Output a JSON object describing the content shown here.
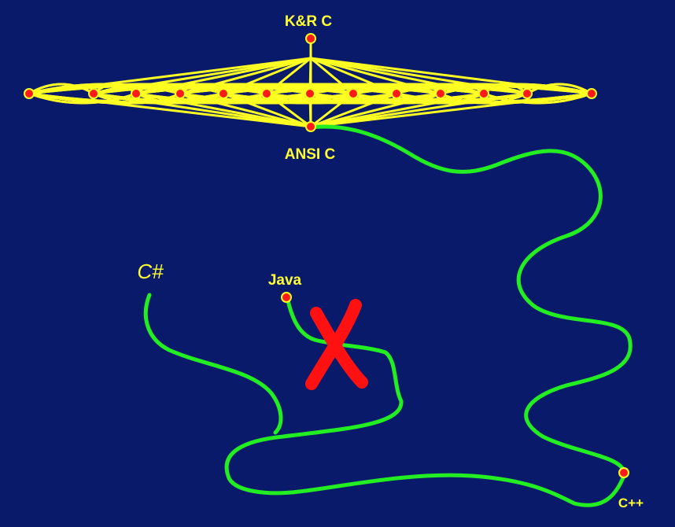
{
  "diagram": {
    "background": "#0a1a6b",
    "colors": {
      "mesh": "#ffff22",
      "node_fill": "#ff1a1a",
      "path": "#22ee22",
      "cross": "#ff1111",
      "text": "#ffff33"
    },
    "labels": {
      "kr_c": "K&R C",
      "ansi_c": "ANSI C",
      "csharp": "C#",
      "java": "Java",
      "cpp": "C++"
    },
    "edges": [
      {
        "from": "ANSI C",
        "to": "C++",
        "style": "wavy"
      },
      {
        "from": "Java",
        "to": "C#",
        "style": "wavy"
      }
    ],
    "crossed_out": "Java"
  }
}
